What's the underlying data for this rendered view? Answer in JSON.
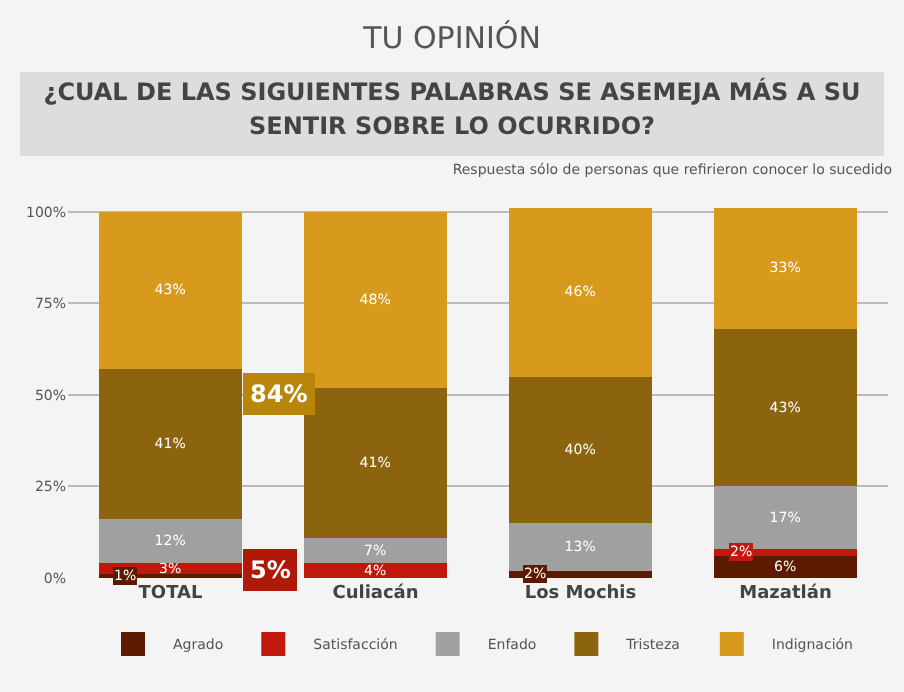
{
  "chart_data": {
    "type": "bar",
    "title": "TU OPINIÓN",
    "subtitle": "¿CUAL DE LAS SIGUIENTES PALABRAS SE ASEMEJA MÁS A SU SENTIR SOBRE LO OCURRIDO?",
    "annotations": [
      "84%",
      "5%",
      "Respuesta sólo de personas que refirieron conocer lo sucedido"
    ],
    "stacked": true,
    "categories": [
      "TOTAL",
      "Culiacán",
      "Los Mochis",
      "Mazatlán"
    ],
    "series": [
      {
        "name": "Agrado",
        "color": "#5c1a00",
        "values": [
          1,
          0,
          2,
          6
        ],
        "value_labels": [
          "1%",
          null,
          "2%",
          "6%"
        ]
      },
      {
        "name": "Satisfacción",
        "color": "#c0180c",
        "values": [
          3,
          4,
          0,
          2
        ],
        "value_labels": [
          "3%",
          "4%",
          null,
          "2%"
        ]
      },
      {
        "name": "Enfado",
        "color": "#a0a0a0",
        "values": [
          12,
          7,
          13,
          17
        ],
        "value_labels": [
          "12%",
          "7%",
          "13%",
          "17%"
        ]
      },
      {
        "name": "Tristeza",
        "color": "#8c6410",
        "values": [
          41,
          41,
          40,
          43
        ],
        "value_labels": [
          "41%",
          "41%",
          "40%",
          "43%"
        ]
      },
      {
        "name": "Indignación",
        "color": "#d89a1c",
        "values": [
          43,
          48,
          46,
          33
        ],
        "value_labels": [
          "43%",
          "48%",
          "46%",
          "33%"
        ]
      }
    ],
    "ylim": [
      0,
      101
    ],
    "yticks": [
      {
        "value": 0,
        "label": "0%"
      },
      {
        "value": 25,
        "label": "25%"
      },
      {
        "value": 50,
        "label": "50%"
      },
      {
        "value": 75,
        "label": "75%"
      },
      {
        "value": 100,
        "label": "100%"
      }
    ],
    "grid": "y",
    "legend": "bottom"
  }
}
